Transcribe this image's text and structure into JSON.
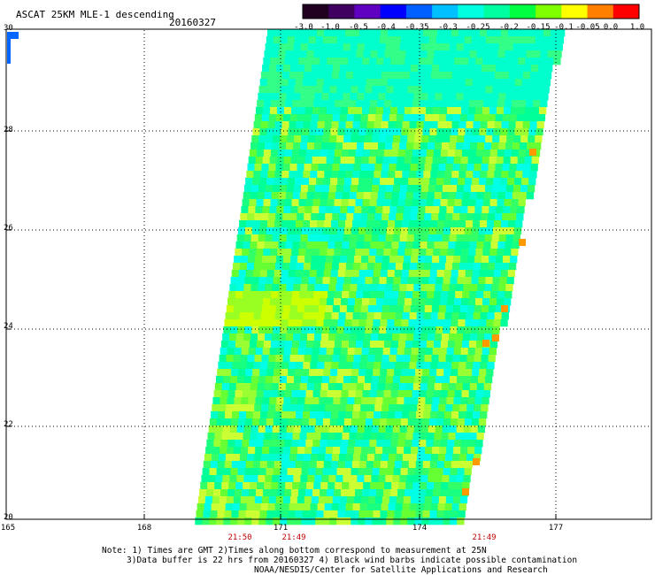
{
  "title": "ASCAT 25KM MLE-1 descending",
  "date": "20160327",
  "colorbar": {
    "labels": [
      "-3.0",
      "-1.0",
      "-0.5",
      "-0.4",
      "-0.35",
      "-0.3",
      "-0.25",
      "-0.2",
      "-0.15",
      "-0.1",
      "-0.05",
      "0.0",
      "1.0"
    ],
    "colors": [
      "#200020",
      "#400060",
      "#6000c0",
      "#0000ff",
      "#0060ff",
      "#00c0ff",
      "#00ffe0",
      "#00ffa0",
      "#00ff40",
      "#80ff00",
      "#ffff00",
      "#ff8000",
      "#ff0000"
    ]
  },
  "map": {
    "lat_labels": [
      "30",
      "28",
      "26",
      "24",
      "22",
      "20"
    ],
    "lon_labels": [
      "165",
      "168",
      "171",
      "174",
      "177"
    ],
    "time_labels": [
      "21:50",
      "21:49",
      "21:49"
    ]
  },
  "notes": {
    "line1": "Note: 1) Times are GMT 2)Times along bottom correspond to measurement at 25N",
    "line2": "3)Data buffer is 22 hrs from 20160327 4) Black wind barbs indicate possible contamination",
    "line3": "NOAA/NESDIS/Center for Satellite Applications and Research"
  }
}
